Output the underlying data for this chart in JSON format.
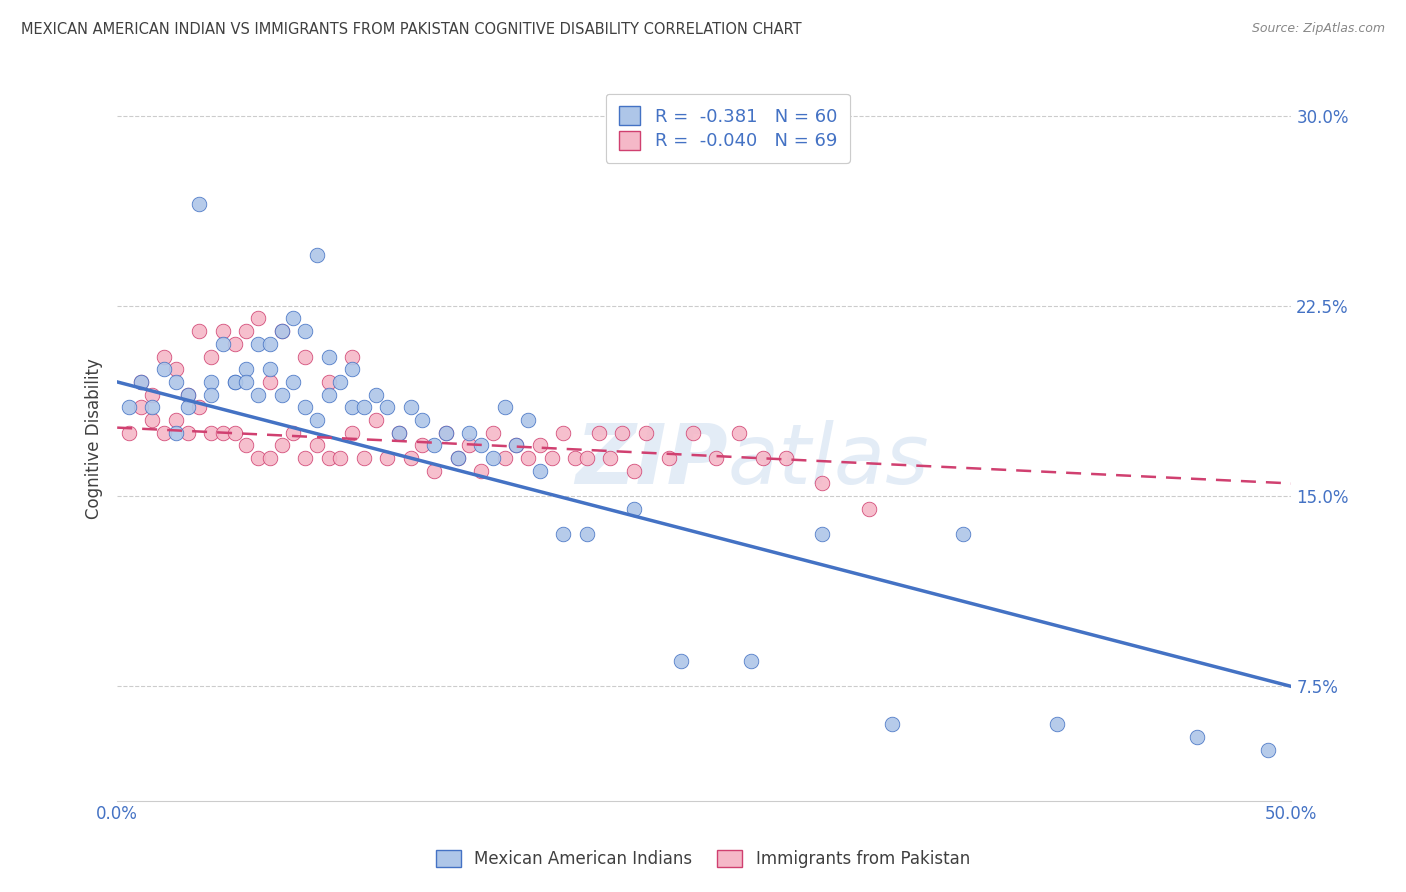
{
  "title": "MEXICAN AMERICAN INDIAN VS IMMIGRANTS FROM PAKISTAN COGNITIVE DISABILITY CORRELATION CHART",
  "source": "Source: ZipAtlas.com",
  "ylabel": "Cognitive Disability",
  "xlim": [
    0.0,
    0.5
  ],
  "ylim": [
    0.03,
    0.315
  ],
  "yticks": [
    0.075,
    0.15,
    0.225,
    0.3
  ],
  "ytick_labels": [
    "7.5%",
    "15.0%",
    "22.5%",
    "30.0%"
  ],
  "xticks": [
    0.0,
    0.1,
    0.2,
    0.3,
    0.4,
    0.5
  ],
  "xtick_labels": [
    "0.0%",
    "",
    "",
    "",
    "",
    "50.0%"
  ],
  "legend_r1": "R =  -0.381   N = 60",
  "legend_r2": "R =  -0.040   N = 69",
  "color_blue": "#aec6e8",
  "color_pink": "#f5b8c8",
  "line_blue": "#4472c4",
  "line_pink": "#d04070",
  "watermark_zip": "ZIP",
  "watermark_atlas": "atlas",
  "title_color": "#404040",
  "axis_color": "#4472c4",
  "blue_scatter_x": [
    0.005,
    0.01,
    0.015,
    0.02,
    0.025,
    0.025,
    0.03,
    0.03,
    0.035,
    0.04,
    0.04,
    0.045,
    0.05,
    0.05,
    0.055,
    0.055,
    0.06,
    0.06,
    0.065,
    0.065,
    0.07,
    0.07,
    0.075,
    0.075,
    0.08,
    0.08,
    0.085,
    0.085,
    0.09,
    0.09,
    0.095,
    0.1,
    0.1,
    0.105,
    0.11,
    0.115,
    0.12,
    0.125,
    0.13,
    0.135,
    0.14,
    0.145,
    0.15,
    0.155,
    0.16,
    0.165,
    0.17,
    0.175,
    0.18,
    0.19,
    0.2,
    0.22,
    0.24,
    0.27,
    0.3,
    0.33,
    0.36,
    0.4,
    0.46,
    0.49
  ],
  "blue_scatter_y": [
    0.185,
    0.195,
    0.185,
    0.2,
    0.195,
    0.175,
    0.19,
    0.185,
    0.265,
    0.195,
    0.19,
    0.21,
    0.195,
    0.195,
    0.2,
    0.195,
    0.21,
    0.19,
    0.21,
    0.2,
    0.215,
    0.19,
    0.22,
    0.195,
    0.215,
    0.185,
    0.245,
    0.18,
    0.205,
    0.19,
    0.195,
    0.2,
    0.185,
    0.185,
    0.19,
    0.185,
    0.175,
    0.185,
    0.18,
    0.17,
    0.175,
    0.165,
    0.175,
    0.17,
    0.165,
    0.185,
    0.17,
    0.18,
    0.16,
    0.135,
    0.135,
    0.145,
    0.085,
    0.085,
    0.135,
    0.06,
    0.135,
    0.06,
    0.055,
    0.05
  ],
  "pink_scatter_x": [
    0.005,
    0.01,
    0.01,
    0.015,
    0.015,
    0.02,
    0.02,
    0.025,
    0.025,
    0.03,
    0.03,
    0.035,
    0.035,
    0.04,
    0.04,
    0.045,
    0.045,
    0.05,
    0.05,
    0.055,
    0.055,
    0.06,
    0.06,
    0.065,
    0.065,
    0.07,
    0.07,
    0.075,
    0.08,
    0.08,
    0.085,
    0.09,
    0.09,
    0.095,
    0.1,
    0.1,
    0.105,
    0.11,
    0.115,
    0.12,
    0.125,
    0.13,
    0.135,
    0.14,
    0.145,
    0.15,
    0.155,
    0.16,
    0.165,
    0.17,
    0.175,
    0.18,
    0.185,
    0.19,
    0.195,
    0.2,
    0.205,
    0.21,
    0.215,
    0.22,
    0.225,
    0.235,
    0.245,
    0.255,
    0.265,
    0.275,
    0.285,
    0.3,
    0.32
  ],
  "pink_scatter_y": [
    0.175,
    0.185,
    0.195,
    0.18,
    0.19,
    0.175,
    0.205,
    0.18,
    0.2,
    0.175,
    0.19,
    0.185,
    0.215,
    0.175,
    0.205,
    0.175,
    0.215,
    0.175,
    0.21,
    0.17,
    0.215,
    0.165,
    0.22,
    0.165,
    0.195,
    0.17,
    0.215,
    0.175,
    0.165,
    0.205,
    0.17,
    0.165,
    0.195,
    0.165,
    0.175,
    0.205,
    0.165,
    0.18,
    0.165,
    0.175,
    0.165,
    0.17,
    0.16,
    0.175,
    0.165,
    0.17,
    0.16,
    0.175,
    0.165,
    0.17,
    0.165,
    0.17,
    0.165,
    0.175,
    0.165,
    0.165,
    0.175,
    0.165,
    0.175,
    0.16,
    0.175,
    0.165,
    0.175,
    0.165,
    0.175,
    0.165,
    0.165,
    0.155,
    0.145
  ],
  "blue_line_x": [
    0.0,
    0.5
  ],
  "blue_line_y": [
    0.195,
    0.075
  ],
  "pink_line_x": [
    0.0,
    0.5
  ],
  "pink_line_y": [
    0.177,
    0.155
  ]
}
